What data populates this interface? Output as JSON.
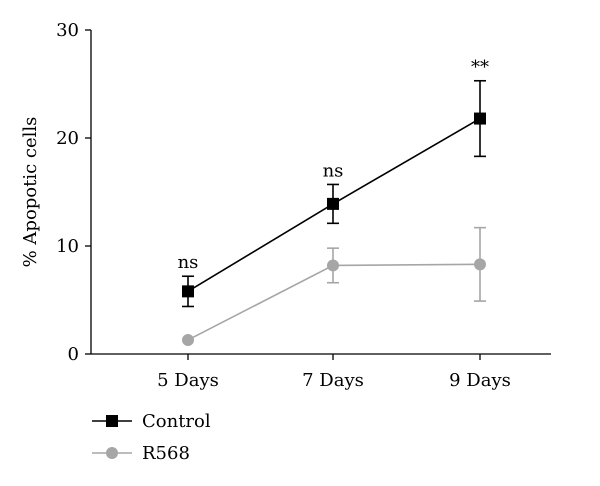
{
  "chart_data": {
    "type": "line",
    "title": "",
    "xlabel": "",
    "ylabel": "% Apopotic cells",
    "categories": [
      "5 Days",
      "7 Days",
      "9 Days"
    ],
    "ylim": [
      0,
      30
    ],
    "yticks": [
      0,
      10,
      20,
      30
    ],
    "grid": false,
    "legend_position": "bottom-left",
    "series": [
      {
        "name": "Control",
        "color": "#000000",
        "marker": "square",
        "values": [
          5.8,
          13.9,
          21.8
        ],
        "error": [
          1.4,
          1.8,
          3.5
        ]
      },
      {
        "name": "R568",
        "color": "#a6a6a6",
        "marker": "circle",
        "values": [
          1.3,
          8.2,
          8.3
        ],
        "error": [
          0,
          1.6,
          3.4
        ]
      }
    ],
    "annotations": [
      {
        "category": "5 Days",
        "text": "ns"
      },
      {
        "category": "7 Days",
        "text": "ns"
      },
      {
        "category": "9 Days",
        "text": "**"
      }
    ]
  }
}
